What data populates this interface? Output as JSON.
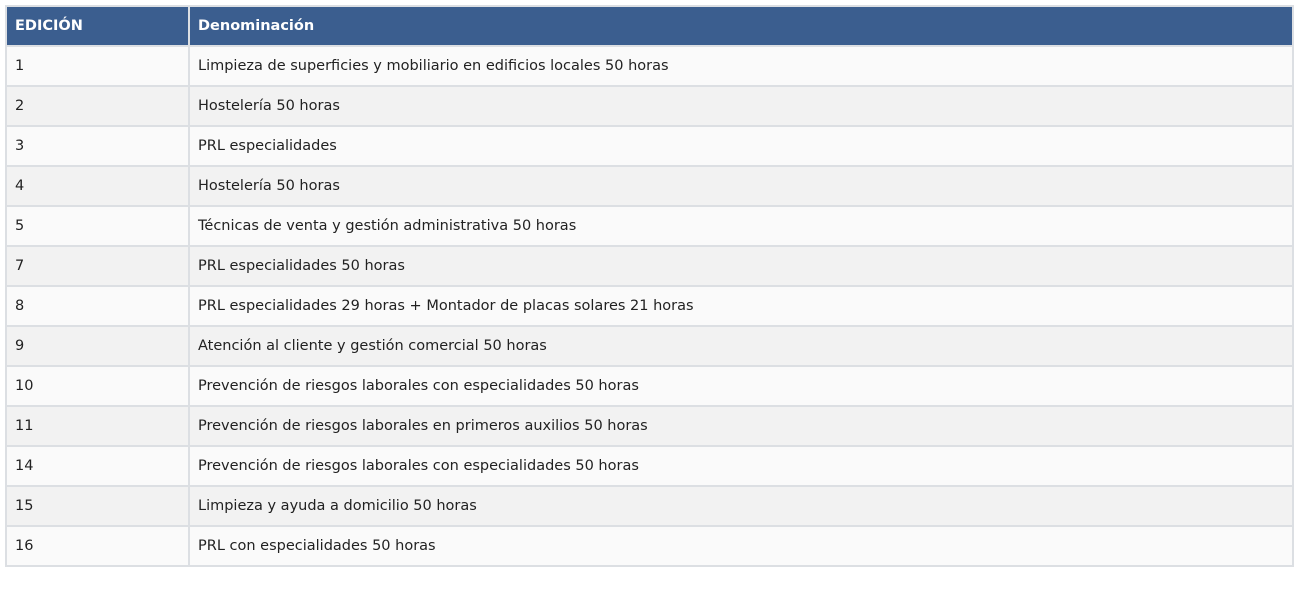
{
  "table": {
    "headers": [
      "EDICIÓN",
      "Denominación"
    ],
    "rows": [
      [
        "1",
        "Limpieza de superficies y mobiliario en edificios locales 50 horas"
      ],
      [
        "2",
        "Hostelería 50 horas"
      ],
      [
        "3",
        "PRL especialidades"
      ],
      [
        "4",
        "Hostelería 50 horas"
      ],
      [
        "5",
        "Técnicas de venta y gestión administrativa 50 horas"
      ],
      [
        "7",
        "PRL especialidades 50 horas"
      ],
      [
        "8",
        "PRL especialidades 29 horas + Montador de placas solares 21 horas"
      ],
      [
        "9",
        "Atención al cliente y gestión comercial 50 horas"
      ],
      [
        "10",
        "Prevención de riesgos laborales con especialidades 50 horas"
      ],
      [
        "11",
        "Prevención de riesgos laborales en primeros auxilios 50 horas"
      ],
      [
        "14",
        "Prevención de riesgos laborales con especialidades 50 horas"
      ],
      [
        "15",
        "Limpieza y ayuda a domicilio 50 horas"
      ],
      [
        "16",
        "PRL con especialidades 50 horas"
      ]
    ]
  },
  "colors": {
    "header_bg": "#3b5e8f",
    "header_text": "#ffffff"
  }
}
